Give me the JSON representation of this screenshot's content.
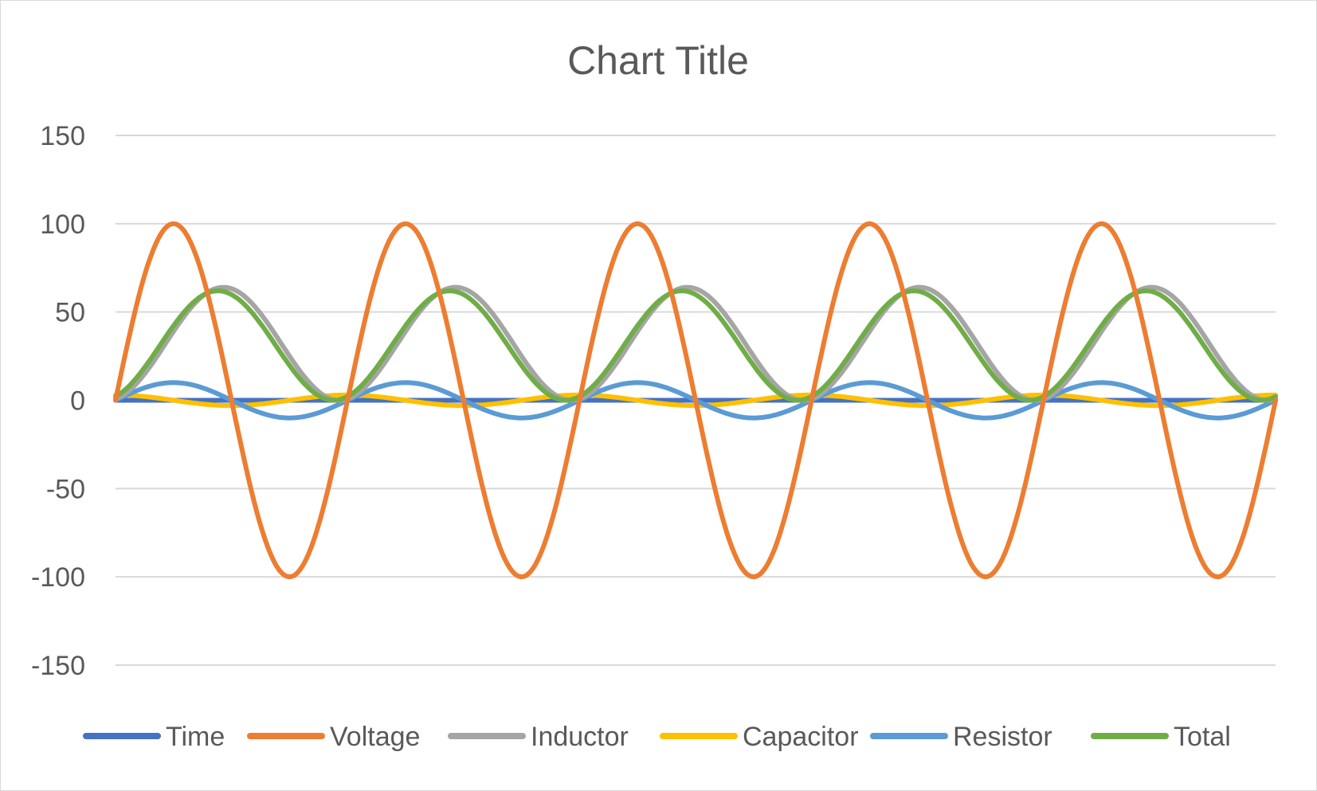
{
  "chart_data": {
    "type": "line",
    "title": "Chart Title",
    "xlabel": "",
    "ylabel": "",
    "ylim": [
      -150,
      150
    ],
    "yticks": [
      150,
      100,
      50,
      0,
      -50,
      -100,
      -150
    ],
    "x_points": 101,
    "grid": true,
    "legend_position": "bottom",
    "series": [
      {
        "name": "Time",
        "color": "#4472C4",
        "description": "flat near 0",
        "values": "constant_0"
      },
      {
        "name": "Voltage",
        "color": "#ED7D31",
        "amplitude": 100,
        "periods": 5,
        "phase": 0,
        "offset": 0
      },
      {
        "name": "Inductor",
        "color": "#A5A5A5",
        "amplitude": 32,
        "periods": 5,
        "phase": -1.35,
        "offset": 32
      },
      {
        "name": "Capacitor",
        "color": "#FFC000",
        "amplitude": 3,
        "periods": 5,
        "phase": 1.57,
        "offset": 0
      },
      {
        "name": "Resistor",
        "color": "#5B9BD5",
        "amplitude": 10,
        "periods": 5,
        "phase": 0,
        "offset": 0
      },
      {
        "name": "Total",
        "color": "#70AD47",
        "amplitude": 31,
        "periods": 5,
        "phase": -1.2,
        "offset": 31
      }
    ]
  }
}
